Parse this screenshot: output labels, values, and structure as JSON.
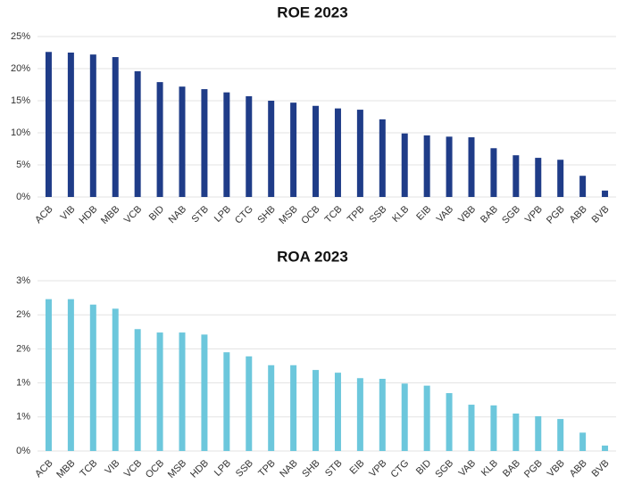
{
  "chart_data": [
    {
      "type": "bar",
      "title": "ROE 2023",
      "categories": [
        "ACB",
        "VIB",
        "HDB",
        "MBB",
        "VCB",
        "BID",
        "NAB",
        "STB",
        "LPB",
        "CTG",
        "SHB",
        "MSB",
        "OCB",
        "TCB",
        "TPB",
        "SSB",
        "KLB",
        "EIB",
        "VAB",
        "VBB",
        "BAB",
        "SGB",
        "VPB",
        "PGB",
        "ABB",
        "BVB"
      ],
      "values": [
        22.6,
        22.5,
        22.2,
        21.8,
        19.6,
        17.9,
        17.2,
        16.8,
        16.3,
        15.7,
        15.0,
        14.7,
        14.2,
        13.8,
        13.6,
        12.1,
        9.9,
        9.6,
        9.4,
        9.3,
        7.6,
        6.5,
        6.1,
        5.8,
        3.3,
        1.0
      ],
      "color": "#1f3c88",
      "ylim": [
        0,
        25
      ],
      "yticks": [
        {
          "value": 0,
          "label": "0%"
        },
        {
          "value": 5,
          "label": "5%"
        },
        {
          "value": 10,
          "label": "10%"
        },
        {
          "value": 15,
          "label": "15%"
        },
        {
          "value": 20,
          "label": "20%"
        },
        {
          "value": 25,
          "label": "25%"
        }
      ],
      "grid": true
    },
    {
      "type": "bar",
      "title": "ROA 2023",
      "categories": [
        "ACB",
        "MBB",
        "TCB",
        "VIB",
        "VCB",
        "OCB",
        "MSB",
        "HDB",
        "LPB",
        "SSB",
        "TPB",
        "NAB",
        "SHB",
        "STB",
        "EIB",
        "VPB",
        "CTG",
        "BID",
        "SGB",
        "VAB",
        "KLB",
        "BAB",
        "PGB",
        "VBB",
        "ABB",
        "BVB"
      ],
      "values": [
        2.23,
        2.23,
        2.15,
        2.09,
        1.79,
        1.74,
        1.74,
        1.71,
        1.45,
        1.39,
        1.26,
        1.26,
        1.19,
        1.15,
        1.07,
        1.06,
        0.99,
        0.96,
        0.85,
        0.68,
        0.67,
        0.55,
        0.51,
        0.47,
        0.27,
        0.08
      ],
      "color": "#6cc7dc",
      "ylim": [
        0,
        2.5
      ],
      "yticks": [
        {
          "value": 0,
          "label": "0%"
        },
        {
          "value": 0.5,
          "label": "1%"
        },
        {
          "value": 1,
          "label": "1%"
        },
        {
          "value": 1.5,
          "label": "2%"
        },
        {
          "value": 2,
          "label": "2%"
        },
        {
          "value": 2.5,
          "label": "3%"
        }
      ],
      "grid": true
    }
  ]
}
